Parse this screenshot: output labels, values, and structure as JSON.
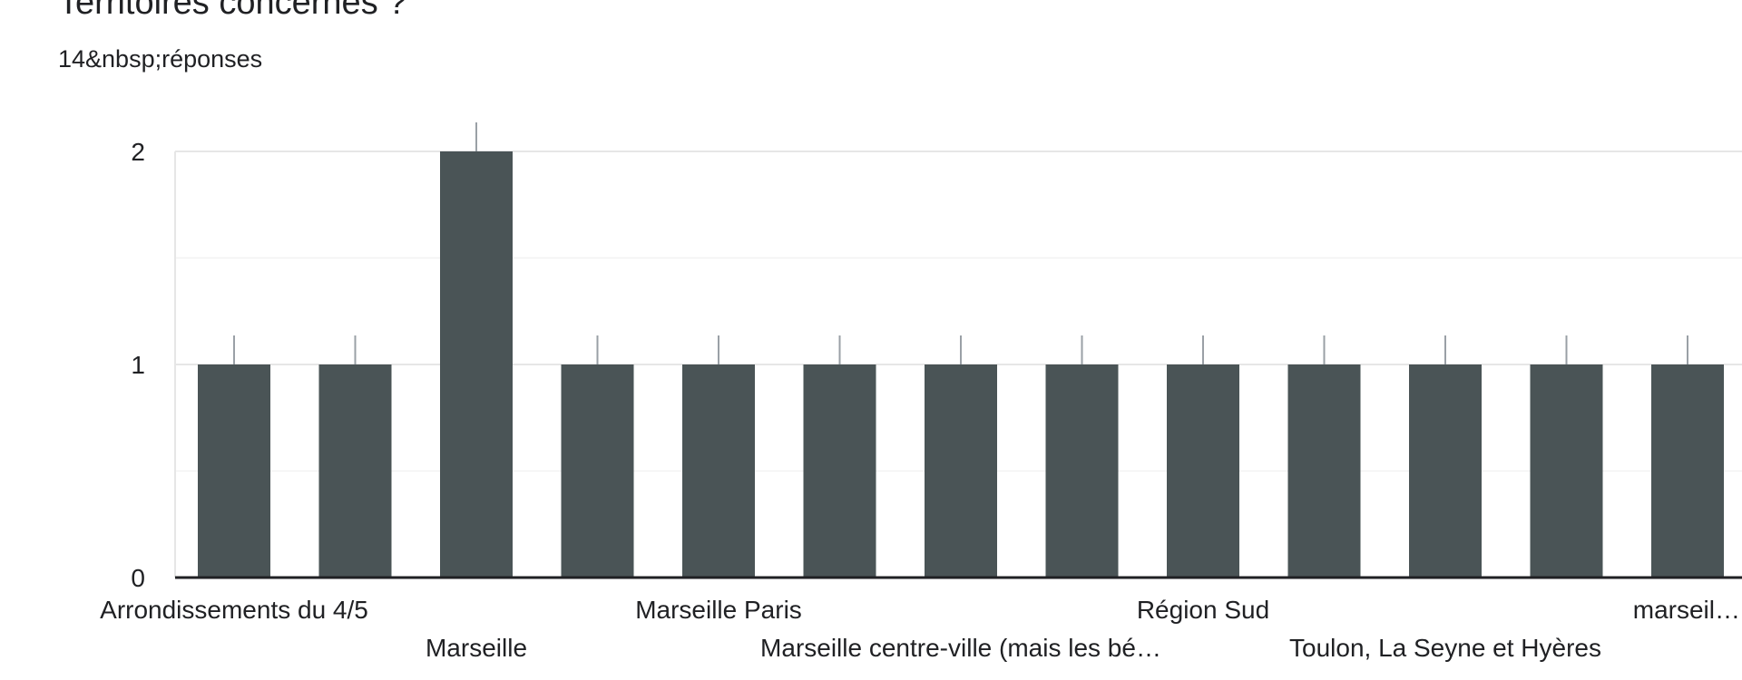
{
  "question": {
    "title": "Territoires concernés ?",
    "responses": "14&nbsp;réponses"
  },
  "colors": {
    "bar": "#4a5456",
    "axis": "#202124",
    "grid": "#e6e6e6",
    "grid_minor": "#f2f2f2",
    "error": "#9aa0a6"
  },
  "chart_data": {
    "type": "bar",
    "categories": [
      "Arrondissements du 4/5",
      "",
      "Marseille",
      "",
      "Marseille Paris",
      "",
      "Marseille centre-ville (mais les bé…",
      "",
      "Région Sud",
      "",
      "Toulon, La Seyne et Hyères",
      "",
      "marseil…"
    ],
    "values": [
      1,
      1,
      2,
      1,
      1,
      1,
      1,
      1,
      1,
      1,
      1,
      1,
      1
    ],
    "title": "",
    "xlabel": "",
    "ylabel": "",
    "ylim": [
      0,
      2
    ],
    "yticks": [
      "0",
      "1",
      "2"
    ],
    "grid": true,
    "legend": "none"
  }
}
